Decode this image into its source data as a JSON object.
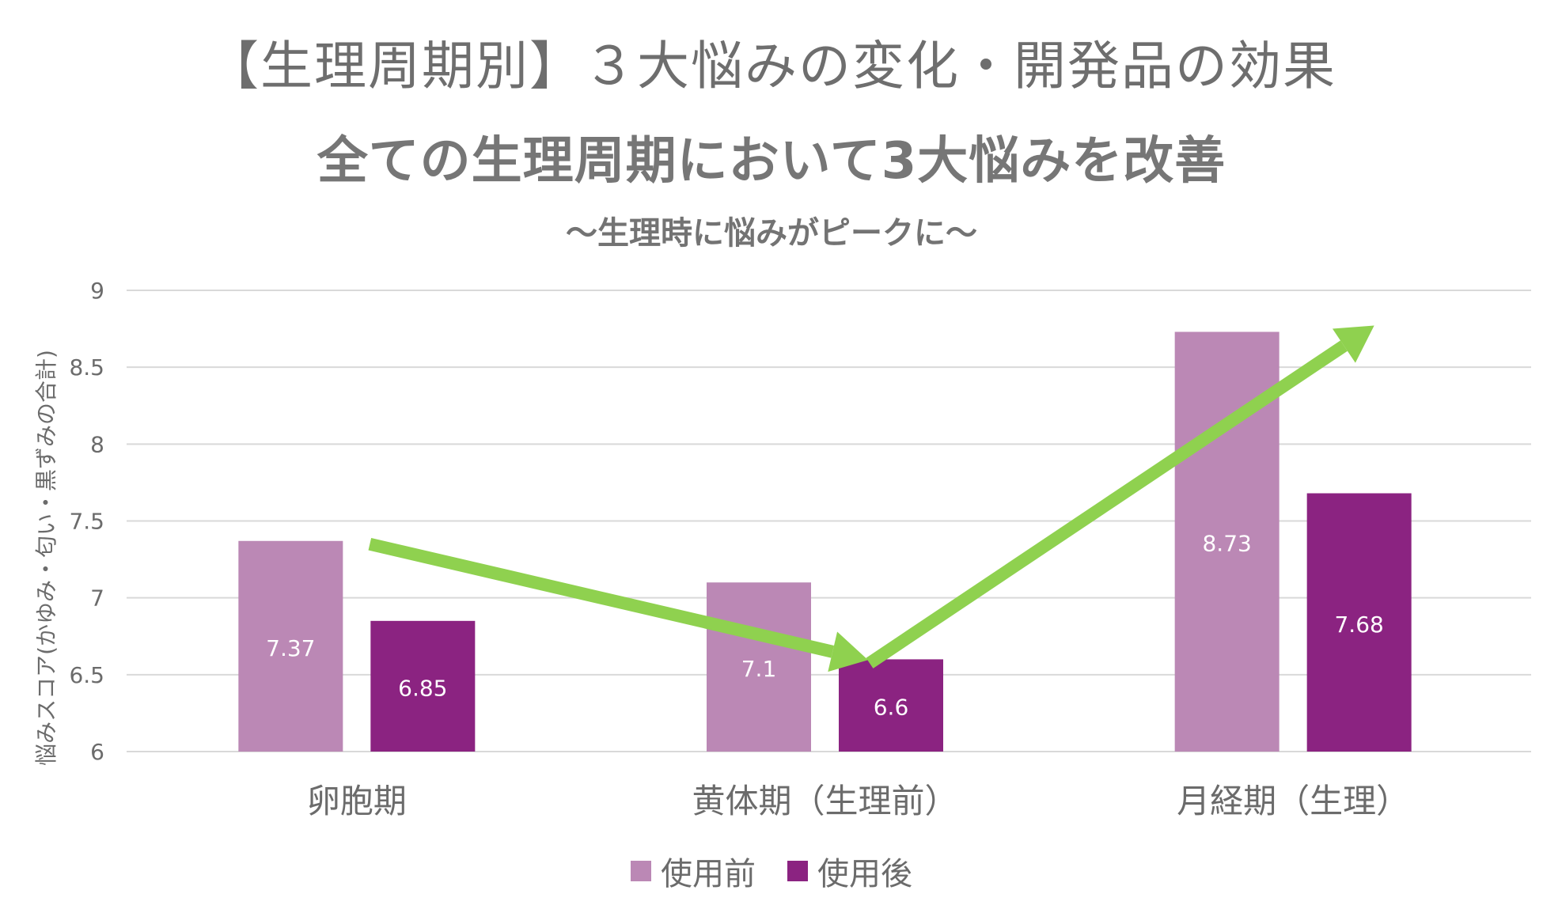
{
  "header": {
    "title": "【生理周期別】３大悩みの変化・開発品の効果",
    "subtitle": "全ての生理周期において3大悩みを改善",
    "subsubtitle": "〜生理時に悩みがピークに〜"
  },
  "colors": {
    "before": "#bb88b5",
    "after": "#8b2381",
    "arrow": "#8fd14f",
    "grid": "#d9d9d9",
    "text": "#6b6b6b"
  },
  "chart_data": {
    "type": "bar",
    "title": "【生理周期別】３大悩みの変化・開発品の効果",
    "ylabel": "悩みスコア(かゆみ・匂い・黒ずみの合計)",
    "xlabel": "",
    "ylim": [
      6,
      9
    ],
    "yticks": [
      "6",
      "6.5",
      "7",
      "7.5",
      "8",
      "8.5",
      "9"
    ],
    "categories": [
      "卵胞期",
      "黄体期（生理前）",
      "月経期（生理）"
    ],
    "series": [
      {
        "name": "使用前",
        "values": [
          7.37,
          7.1,
          8.73
        ],
        "labels": [
          "7.37",
          "7.1",
          "8.73"
        ]
      },
      {
        "name": "使用後",
        "values": [
          6.85,
          6.6,
          7.68
        ],
        "labels": [
          "6.85",
          "6.6",
          "7.68"
        ]
      }
    ],
    "legend": "bottom",
    "grid": true,
    "annotations": [
      "trend-arrow-down",
      "trend-arrow-up"
    ]
  }
}
